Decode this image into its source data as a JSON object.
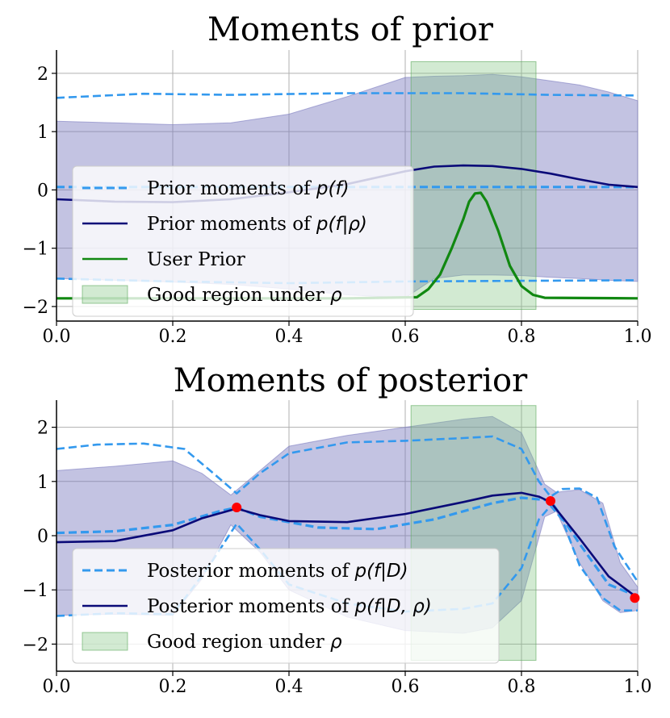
{
  "chart_data": [
    {
      "type": "line",
      "title": "Moments of prior",
      "xlim": [
        0.0,
        1.0
      ],
      "ylim": [
        -2.25,
        2.4
      ],
      "grid": true,
      "legend_placement": "lower-left",
      "xticks": [
        "0.0",
        "0.2",
        "0.4",
        "0.6",
        "0.8",
        "1.0"
      ],
      "yticks": [
        "2",
        "1",
        "0",
        "−1",
        "−2"
      ],
      "good_region": {
        "x0": 0.61,
        "x1": 0.825,
        "y0": -2.05,
        "y1": 2.2,
        "color": "#7fc27f"
      },
      "band": {
        "color": "#7b7bbf",
        "x": [
          0.0,
          0.1,
          0.2,
          0.3,
          0.4,
          0.5,
          0.6,
          0.65,
          0.7,
          0.75,
          0.8,
          0.85,
          0.9,
          0.95,
          1.0
        ],
        "upper": [
          1.18,
          1.15,
          1.12,
          1.15,
          1.3,
          1.6,
          1.93,
          1.95,
          1.96,
          1.98,
          1.94,
          1.87,
          1.8,
          1.68,
          1.53
        ],
        "lower": [
          -1.52,
          -1.55,
          -1.58,
          -1.62,
          -1.7,
          -1.8,
          -1.85,
          -1.52,
          -1.46,
          -1.46,
          -1.47,
          -1.5,
          -1.52,
          -1.55,
          -1.57
        ]
      },
      "series": [
        {
          "name": "Prior moments of p(f)",
          "style": "dashed",
          "color": "#3399ee",
          "lines": [
            {
              "x": [
                0.0,
                0.15,
                0.3,
                0.5,
                0.7,
                0.85,
                1.0
              ],
              "y": [
                1.58,
                1.65,
                1.63,
                1.66,
                1.66,
                1.63,
                1.62
              ]
            },
            {
              "x": [
                0.0,
                1.0
              ],
              "y": [
                0.05,
                0.05
              ]
            },
            {
              "x": [
                0.0,
                0.2,
                0.4,
                0.6,
                0.8,
                1.0
              ],
              "y": [
                -1.52,
                -1.57,
                -1.6,
                -1.57,
                -1.56,
                -1.55
              ]
            }
          ]
        },
        {
          "name": "Prior moments of p(f|ρ)",
          "style": "solid",
          "color": "#0a0a78",
          "x": [
            0.0,
            0.1,
            0.2,
            0.3,
            0.4,
            0.5,
            0.6,
            0.65,
            0.7,
            0.75,
            0.8,
            0.85,
            0.9,
            0.95,
            1.0
          ],
          "y": [
            -0.16,
            -0.2,
            -0.21,
            -0.16,
            -0.04,
            0.1,
            0.32,
            0.4,
            0.42,
            0.41,
            0.36,
            0.28,
            0.18,
            0.09,
            0.05
          ]
        },
        {
          "name": "User Prior",
          "style": "solid",
          "color": "#118811",
          "x": [
            0.0,
            0.5,
            0.62,
            0.64,
            0.66,
            0.68,
            0.7,
            0.71,
            0.72,
            0.73,
            0.74,
            0.76,
            0.78,
            0.8,
            0.82,
            0.84,
            1.0
          ],
          "y": [
            -1.86,
            -1.86,
            -1.84,
            -1.7,
            -1.45,
            -1.0,
            -0.5,
            -0.2,
            -0.06,
            -0.05,
            -0.2,
            -0.7,
            -1.3,
            -1.65,
            -1.8,
            -1.85,
            -1.86
          ]
        }
      ],
      "legend": [
        {
          "text": "Prior moments of ",
          "math": "p(f)",
          "kind": "dashed",
          "color": "#3399ee"
        },
        {
          "text": "Prior moments of ",
          "math": "p(f|ρ)",
          "kind": "solid",
          "color": "#0a0a78"
        },
        {
          "text": "User Prior",
          "math": "",
          "kind": "solid",
          "color": "#118811"
        },
        {
          "text": "Good region under ",
          "math": "ρ",
          "kind": "patch",
          "color": "#7fc27f"
        }
      ]
    },
    {
      "type": "line",
      "title": "Moments of posterior",
      "xlim": [
        0.0,
        1.0
      ],
      "ylim": [
        -2.5,
        2.5
      ],
      "grid": true,
      "legend_placement": "lower-left",
      "xticks": [
        "0.0",
        "0.2",
        "0.4",
        "0.6",
        "0.8",
        "1.0"
      ],
      "yticks": [
        "2",
        "1",
        "0",
        "−1",
        "−2"
      ],
      "good_region": {
        "x0": 0.61,
        "x1": 0.825,
        "y0": -2.3,
        "y1": 2.4,
        "color": "#7fc27f"
      },
      "band": {
        "color": "#7b7bbf",
        "x": [
          0.0,
          0.1,
          0.2,
          0.25,
          0.3,
          0.35,
          0.4,
          0.5,
          0.6,
          0.7,
          0.75,
          0.8,
          0.84,
          0.86,
          0.9,
          0.94,
          0.97,
          1.0
        ],
        "upper": [
          1.2,
          1.28,
          1.38,
          1.15,
          0.75,
          1.2,
          1.65,
          1.85,
          2.0,
          2.15,
          2.2,
          1.9,
          0.95,
          0.8,
          0.85,
          0.6,
          -0.5,
          -0.95
        ],
        "lower": [
          -1.47,
          -1.45,
          -1.47,
          -0.8,
          0.2,
          -0.3,
          -1.0,
          -1.5,
          -1.75,
          -1.8,
          -1.7,
          -1.2,
          0.35,
          0.45,
          -0.5,
          -1.2,
          -1.42,
          -1.38
        ]
      },
      "series": [
        {
          "name": "Posterior moments of p(f|D)",
          "style": "dashed",
          "color": "#3399ee",
          "lines": [
            {
              "x": [
                0.0,
                0.07,
                0.15,
                0.22,
                0.27,
                0.31,
                0.35,
                0.4,
                0.5,
                0.6,
                0.7,
                0.75,
                0.8,
                0.83,
                0.85,
                0.87,
                0.9,
                0.93,
                0.96,
                1.0
              ],
              "y": [
                1.6,
                1.68,
                1.7,
                1.6,
                1.15,
                0.78,
                1.15,
                1.52,
                1.72,
                1.75,
                1.8,
                1.83,
                1.6,
                1.0,
                0.72,
                0.86,
                0.87,
                0.7,
                -0.2,
                -0.85
              ]
            },
            {
              "x": [
                0.0,
                0.1,
                0.2,
                0.28,
                0.31,
                0.35,
                0.45,
                0.55,
                0.65,
                0.75,
                0.8,
                0.85,
                0.9,
                0.95,
                1.0
              ],
              "y": [
                0.05,
                0.08,
                0.2,
                0.45,
                0.52,
                0.35,
                0.15,
                0.12,
                0.3,
                0.6,
                0.7,
                0.65,
                -0.15,
                -0.9,
                -1.12
              ]
            },
            {
              "x": [
                0.0,
                0.1,
                0.2,
                0.26,
                0.31,
                0.35,
                0.4,
                0.5,
                0.6,
                0.7,
                0.75,
                0.8,
                0.83,
                0.85,
                0.87,
                0.9,
                0.94,
                0.97,
                1.0
              ],
              "y": [
                -1.48,
                -1.43,
                -1.45,
                -0.6,
                0.22,
                -0.25,
                -0.9,
                -1.25,
                -1.4,
                -1.35,
                -1.25,
                -0.6,
                0.3,
                0.55,
                0.3,
                -0.55,
                -1.15,
                -1.38,
                -1.38
              ]
            }
          ]
        },
        {
          "name": "Posterior moments of p(f|D, ρ)",
          "style": "solid",
          "color": "#0a0a78",
          "x": [
            0.0,
            0.1,
            0.2,
            0.25,
            0.31,
            0.35,
            0.4,
            0.5,
            0.6,
            0.7,
            0.75,
            0.8,
            0.83,
            0.85,
            0.9,
            0.95,
            1.0
          ],
          "y": [
            -0.12,
            -0.1,
            0.1,
            0.32,
            0.5,
            0.38,
            0.27,
            0.25,
            0.4,
            0.62,
            0.74,
            0.79,
            0.72,
            0.62,
            -0.05,
            -0.75,
            -1.15
          ]
        }
      ],
      "observations": {
        "x": [
          0.31,
          0.85,
          0.995
        ],
        "y": [
          0.52,
          0.64,
          -1.15
        ],
        "color": "#ff0000"
      },
      "legend": [
        {
          "text": "Posterior moments of ",
          "math": "p(f|D)",
          "kind": "dashed",
          "color": "#3399ee"
        },
        {
          "text": "Posterior moments of ",
          "math": "p(f|D, ρ)",
          "kind": "solid",
          "color": "#0a0a78"
        },
        {
          "text": "Good region under ",
          "math": "ρ",
          "kind": "patch",
          "color": "#7fc27f"
        }
      ]
    }
  ]
}
